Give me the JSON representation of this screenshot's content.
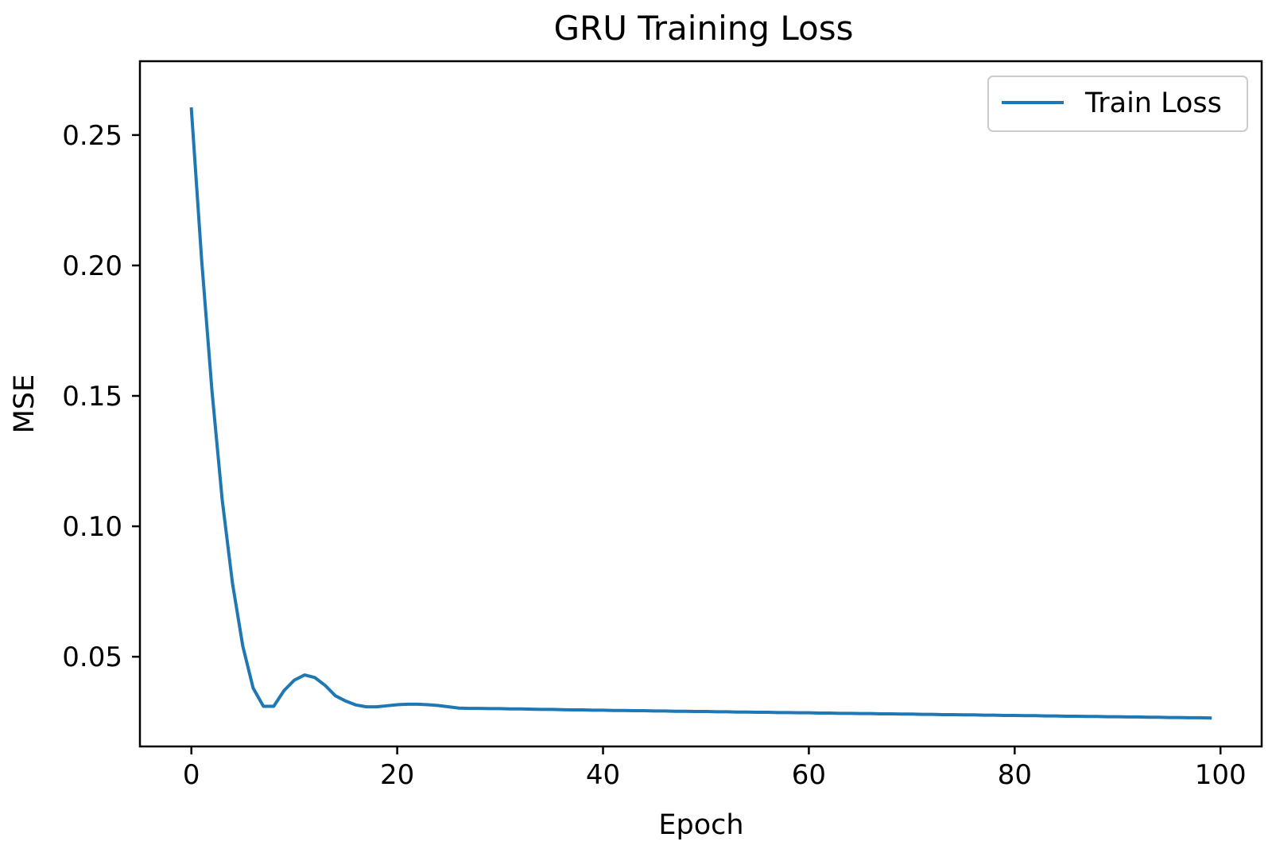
{
  "chart_data": {
    "type": "line",
    "title": "GRU Training Loss",
    "xlabel": "Epoch",
    "ylabel": "MSE",
    "xlim": [
      -5,
      104
    ],
    "ylim": [
      0.0156,
      0.2783
    ],
    "xticks": [
      0,
      20,
      40,
      60,
      80,
      100
    ],
    "xtick_labels": [
      "0",
      "20",
      "40",
      "60",
      "80",
      "100"
    ],
    "yticks": [
      0.05,
      0.1,
      0.15,
      0.2,
      0.25
    ],
    "ytick_labels": [
      "0.05",
      "0.10",
      "0.15",
      "0.20",
      "0.25"
    ],
    "grid": false,
    "legend_position": "top-right",
    "series": [
      {
        "name": "Train Loss",
        "color": "#1f77b4",
        "x": [
          0,
          1,
          2,
          3,
          4,
          5,
          6,
          7,
          8,
          9,
          10,
          11,
          12,
          13,
          14,
          15,
          16,
          17,
          18,
          19,
          20,
          21,
          22,
          23,
          24,
          25,
          26,
          27,
          28,
          29,
          30,
          31,
          32,
          33,
          34,
          35,
          36,
          37,
          38,
          39,
          40,
          41,
          42,
          43,
          44,
          45,
          46,
          47,
          48,
          49,
          50,
          51,
          52,
          53,
          54,
          55,
          56,
          57,
          58,
          59,
          60,
          61,
          62,
          63,
          64,
          65,
          66,
          67,
          68,
          69,
          70,
          71,
          72,
          73,
          74,
          75,
          76,
          77,
          78,
          79,
          80,
          81,
          82,
          83,
          84,
          85,
          86,
          87,
          88,
          89,
          90,
          91,
          92,
          93,
          94,
          95,
          96,
          97,
          98,
          99
        ],
        "values": [
          0.26,
          0.202,
          0.152,
          0.11,
          0.078,
          0.054,
          0.038,
          0.031,
          0.031,
          0.037,
          0.041,
          0.043,
          0.042,
          0.039,
          0.035,
          0.033,
          0.0315,
          0.0308,
          0.0308,
          0.0312,
          0.0316,
          0.0318,
          0.0318,
          0.0316,
          0.0313,
          0.0308,
          0.0303,
          0.0302,
          0.0302,
          0.0301,
          0.0301,
          0.03,
          0.03,
          0.0299,
          0.0298,
          0.0298,
          0.0297,
          0.0296,
          0.0296,
          0.0295,
          0.0295,
          0.0294,
          0.0294,
          0.0293,
          0.0293,
          0.0292,
          0.0292,
          0.0291,
          0.0291,
          0.029,
          0.029,
          0.0289,
          0.0289,
          0.0288,
          0.0288,
          0.0287,
          0.0287,
          0.0286,
          0.0286,
          0.0285,
          0.0285,
          0.0284,
          0.0284,
          0.0283,
          0.0283,
          0.0282,
          0.0282,
          0.0281,
          0.0281,
          0.028,
          0.028,
          0.0279,
          0.0279,
          0.0278,
          0.0278,
          0.0277,
          0.0277,
          0.0276,
          0.0276,
          0.0275,
          0.0275,
          0.0274,
          0.0274,
          0.0273,
          0.0273,
          0.0272,
          0.0272,
          0.0271,
          0.0271,
          0.027,
          0.027,
          0.0269,
          0.0269,
          0.0268,
          0.0268,
          0.0267,
          0.0267,
          0.0266,
          0.0266,
          0.0265
        ]
      }
    ]
  }
}
